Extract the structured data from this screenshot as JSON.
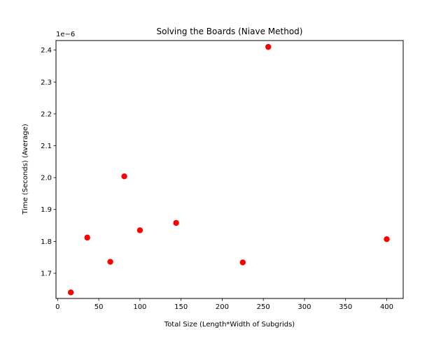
{
  "chart_data": {
    "type": "scatter",
    "title": "Solving the Boards (Niave Method)",
    "xlabel": "Total Size (Length*Width of Subgrids)",
    "ylabel": "Time (Seconds) (Average)",
    "y_offset_label": "1e−6",
    "xlim": [
      -2,
      420
    ],
    "ylim": [
      1.621,
      2.43
    ],
    "xticks": [
      0,
      50,
      100,
      150,
      200,
      250,
      300,
      350,
      400
    ],
    "xtick_labels": [
      "0",
      "50",
      "100",
      "150",
      "200",
      "250",
      "300",
      "350",
      "400"
    ],
    "yticks": [
      1.7,
      1.8,
      1.9,
      2.0,
      2.1,
      2.2,
      2.3,
      2.4
    ],
    "ytick_labels": [
      "1.7",
      "1.8",
      "1.9",
      "2.0",
      "2.1",
      "2.2",
      "2.3",
      "2.4"
    ],
    "grid": false,
    "legend": "none",
    "marker_color": "#ff0000",
    "series": [
      {
        "x": [
          16,
          36,
          64,
          81,
          100,
          144,
          225,
          256,
          400
        ],
        "y": [
          1.64,
          1.812,
          1.736,
          2.004,
          1.835,
          1.858,
          1.734,
          2.41,
          1.807
        ]
      }
    ]
  }
}
